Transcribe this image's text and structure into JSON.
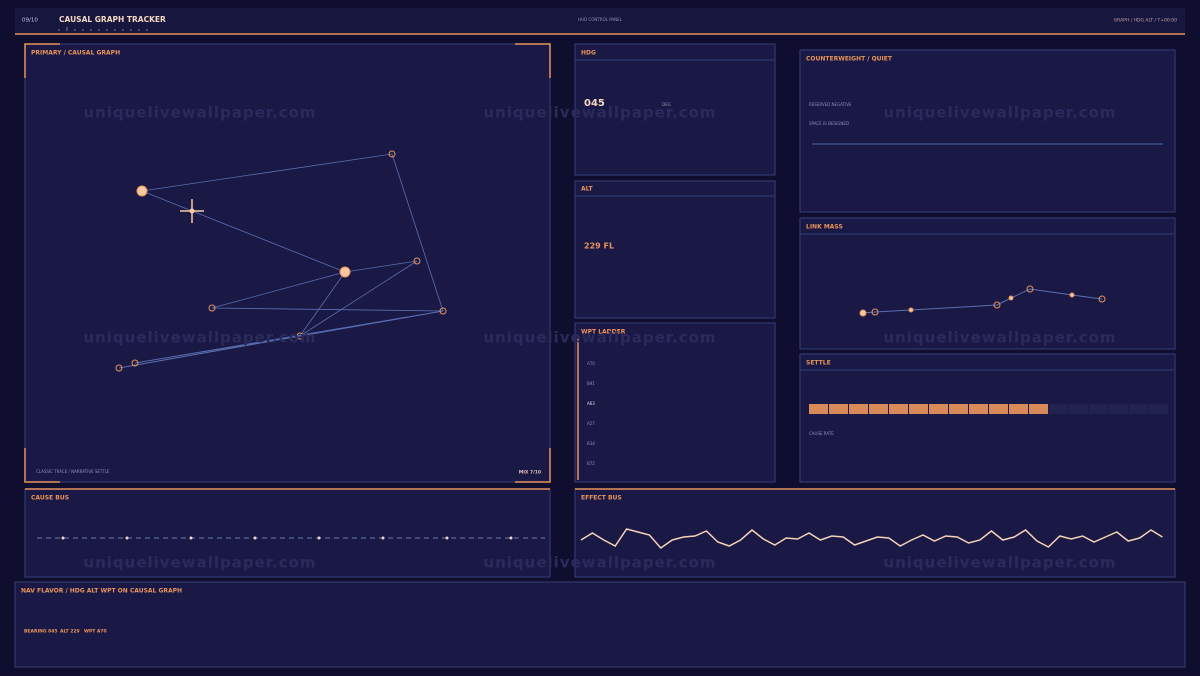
{
  "header": {
    "page": "09/10",
    "title": "CAUSAL GRAPH TRACKER",
    "subtitle": "HUD CONTROL PANEL",
    "breadcrumb": "GRAPH / HDG ALT / T+00:00"
  },
  "watermark": "uniquelivewallpaper.com",
  "primary": {
    "title": "PRIMARY / CAUSAL GRAPH",
    "footer_left": "CLASSIC TRACE / NARRATIVE SETTLE",
    "footer_right": "MIX 7/10"
  },
  "hdg": {
    "title": "HDG",
    "value": "045",
    "unit": "DEG"
  },
  "alt": {
    "title": "ALT",
    "value": "229 FL"
  },
  "wpt_ladder": {
    "title": "WPT LADDER",
    "items": [
      "A70",
      "B91",
      "A63",
      "A27",
      "B34",
      "B72"
    ]
  },
  "counterweight": {
    "title": "COUNTERWEIGHT / QUIET",
    "lines": [
      "RESERVED NEGATIVE",
      "SPACE IS DESIGNED"
    ]
  },
  "link_mass": {
    "title": "LINK MASS"
  },
  "settle": {
    "title": "SETTLE",
    "caption": "CAUSE RATE"
  },
  "cause_bus": {
    "title": "CAUSE BUS"
  },
  "effect_bus": {
    "title": "EFFECT BUS"
  },
  "nav": {
    "title": "NAV FLAVOR / HDG ALT WPT ON CAUSAL GRAPH",
    "readout": [
      "BEARING 045",
      "ALT 229",
      "WPT A70"
    ]
  }
}
